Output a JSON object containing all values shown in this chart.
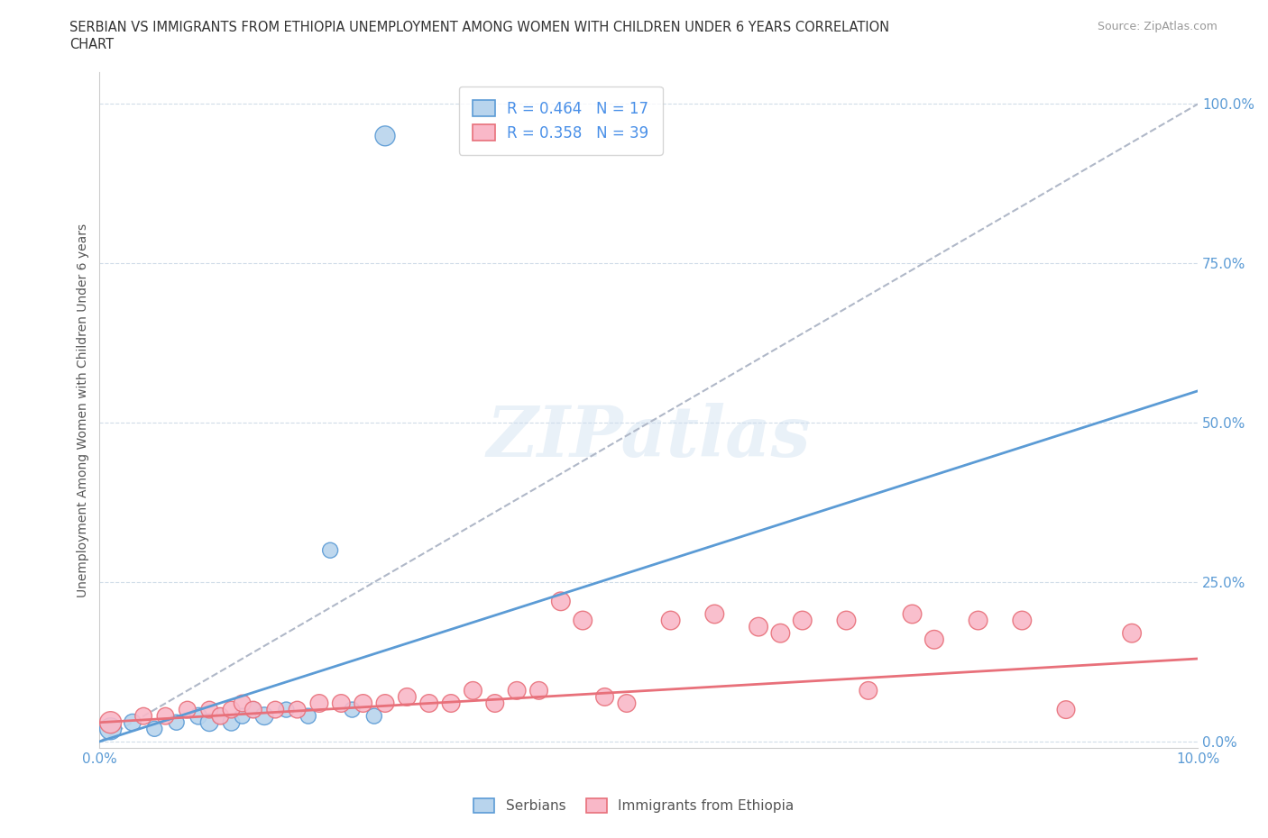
{
  "title_line1": "SERBIAN VS IMMIGRANTS FROM ETHIOPIA UNEMPLOYMENT AMONG WOMEN WITH CHILDREN UNDER 6 YEARS CORRELATION",
  "title_line2": "CHART",
  "source": "Source: ZipAtlas.com",
  "ylabel": "Unemployment Among Women with Children Under 6 years",
  "xlim": [
    0.0,
    0.1
  ],
  "ylim": [
    -0.01,
    1.05
  ],
  "yticks": [
    0.0,
    0.25,
    0.5,
    0.75,
    1.0
  ],
  "ytick_labels": [
    "0.0%",
    "25.0%",
    "50.0%",
    "75.0%",
    "100.0%"
  ],
  "xticks": [
    0.0,
    0.02,
    0.04,
    0.06,
    0.08,
    0.1
  ],
  "xtick_labels": [
    "0.0%",
    "",
    "",
    "",
    "",
    "10.0%"
  ],
  "serbian_R": 0.464,
  "serbian_N": 17,
  "ethiopia_R": 0.358,
  "ethiopia_N": 39,
  "serbian_color": "#b8d4ed",
  "ethiopia_color": "#f9b8c8",
  "serbian_line_color": "#5b9bd5",
  "ethiopia_line_color": "#e8707a",
  "diag_line_color": "#b0b8c8",
  "legend_label_serbian": "Serbians",
  "legend_label_ethiopia": "Immigrants from Ethiopia",
  "serbian_x": [
    0.001,
    0.003,
    0.005,
    0.007,
    0.009,
    0.01,
    0.011,
    0.012,
    0.013,
    0.014,
    0.015,
    0.017,
    0.019,
    0.021,
    0.023,
    0.025,
    0.026
  ],
  "serbian_y": [
    0.02,
    0.03,
    0.02,
    0.03,
    0.04,
    0.03,
    0.04,
    0.03,
    0.04,
    0.05,
    0.04,
    0.05,
    0.04,
    0.3,
    0.05,
    0.04,
    0.95
  ],
  "serbian_sizes": [
    300,
    180,
    150,
    150,
    180,
    200,
    150,
    180,
    150,
    150,
    200,
    150,
    150,
    150,
    150,
    150,
    250
  ],
  "ethiopia_x": [
    0.001,
    0.004,
    0.006,
    0.008,
    0.01,
    0.011,
    0.012,
    0.013,
    0.014,
    0.016,
    0.018,
    0.02,
    0.022,
    0.024,
    0.026,
    0.028,
    0.03,
    0.032,
    0.034,
    0.036,
    0.038,
    0.04,
    0.042,
    0.044,
    0.046,
    0.048,
    0.052,
    0.056,
    0.06,
    0.062,
    0.064,
    0.068,
    0.07,
    0.074,
    0.076,
    0.08,
    0.084,
    0.088,
    0.094
  ],
  "ethiopia_y": [
    0.03,
    0.04,
    0.04,
    0.05,
    0.05,
    0.04,
    0.05,
    0.06,
    0.05,
    0.05,
    0.05,
    0.06,
    0.06,
    0.06,
    0.06,
    0.07,
    0.06,
    0.06,
    0.08,
    0.06,
    0.08,
    0.08,
    0.22,
    0.19,
    0.07,
    0.06,
    0.19,
    0.2,
    0.18,
    0.17,
    0.19,
    0.19,
    0.08,
    0.2,
    0.16,
    0.19,
    0.19,
    0.05,
    0.17
  ],
  "ethiopia_sizes": [
    300,
    180,
    180,
    180,
    180,
    180,
    180,
    180,
    180,
    180,
    180,
    200,
    200,
    200,
    200,
    200,
    200,
    200,
    200,
    200,
    200,
    200,
    220,
    220,
    200,
    200,
    220,
    220,
    220,
    220,
    220,
    220,
    200,
    220,
    220,
    220,
    220,
    200,
    220
  ],
  "serbian_trend_x": [
    0.0,
    0.1
  ],
  "serbian_trend_y": [
    0.0,
    0.55
  ],
  "ethiopia_trend_x": [
    0.0,
    0.1
  ],
  "ethiopia_trend_y": [
    0.03,
    0.13
  ]
}
